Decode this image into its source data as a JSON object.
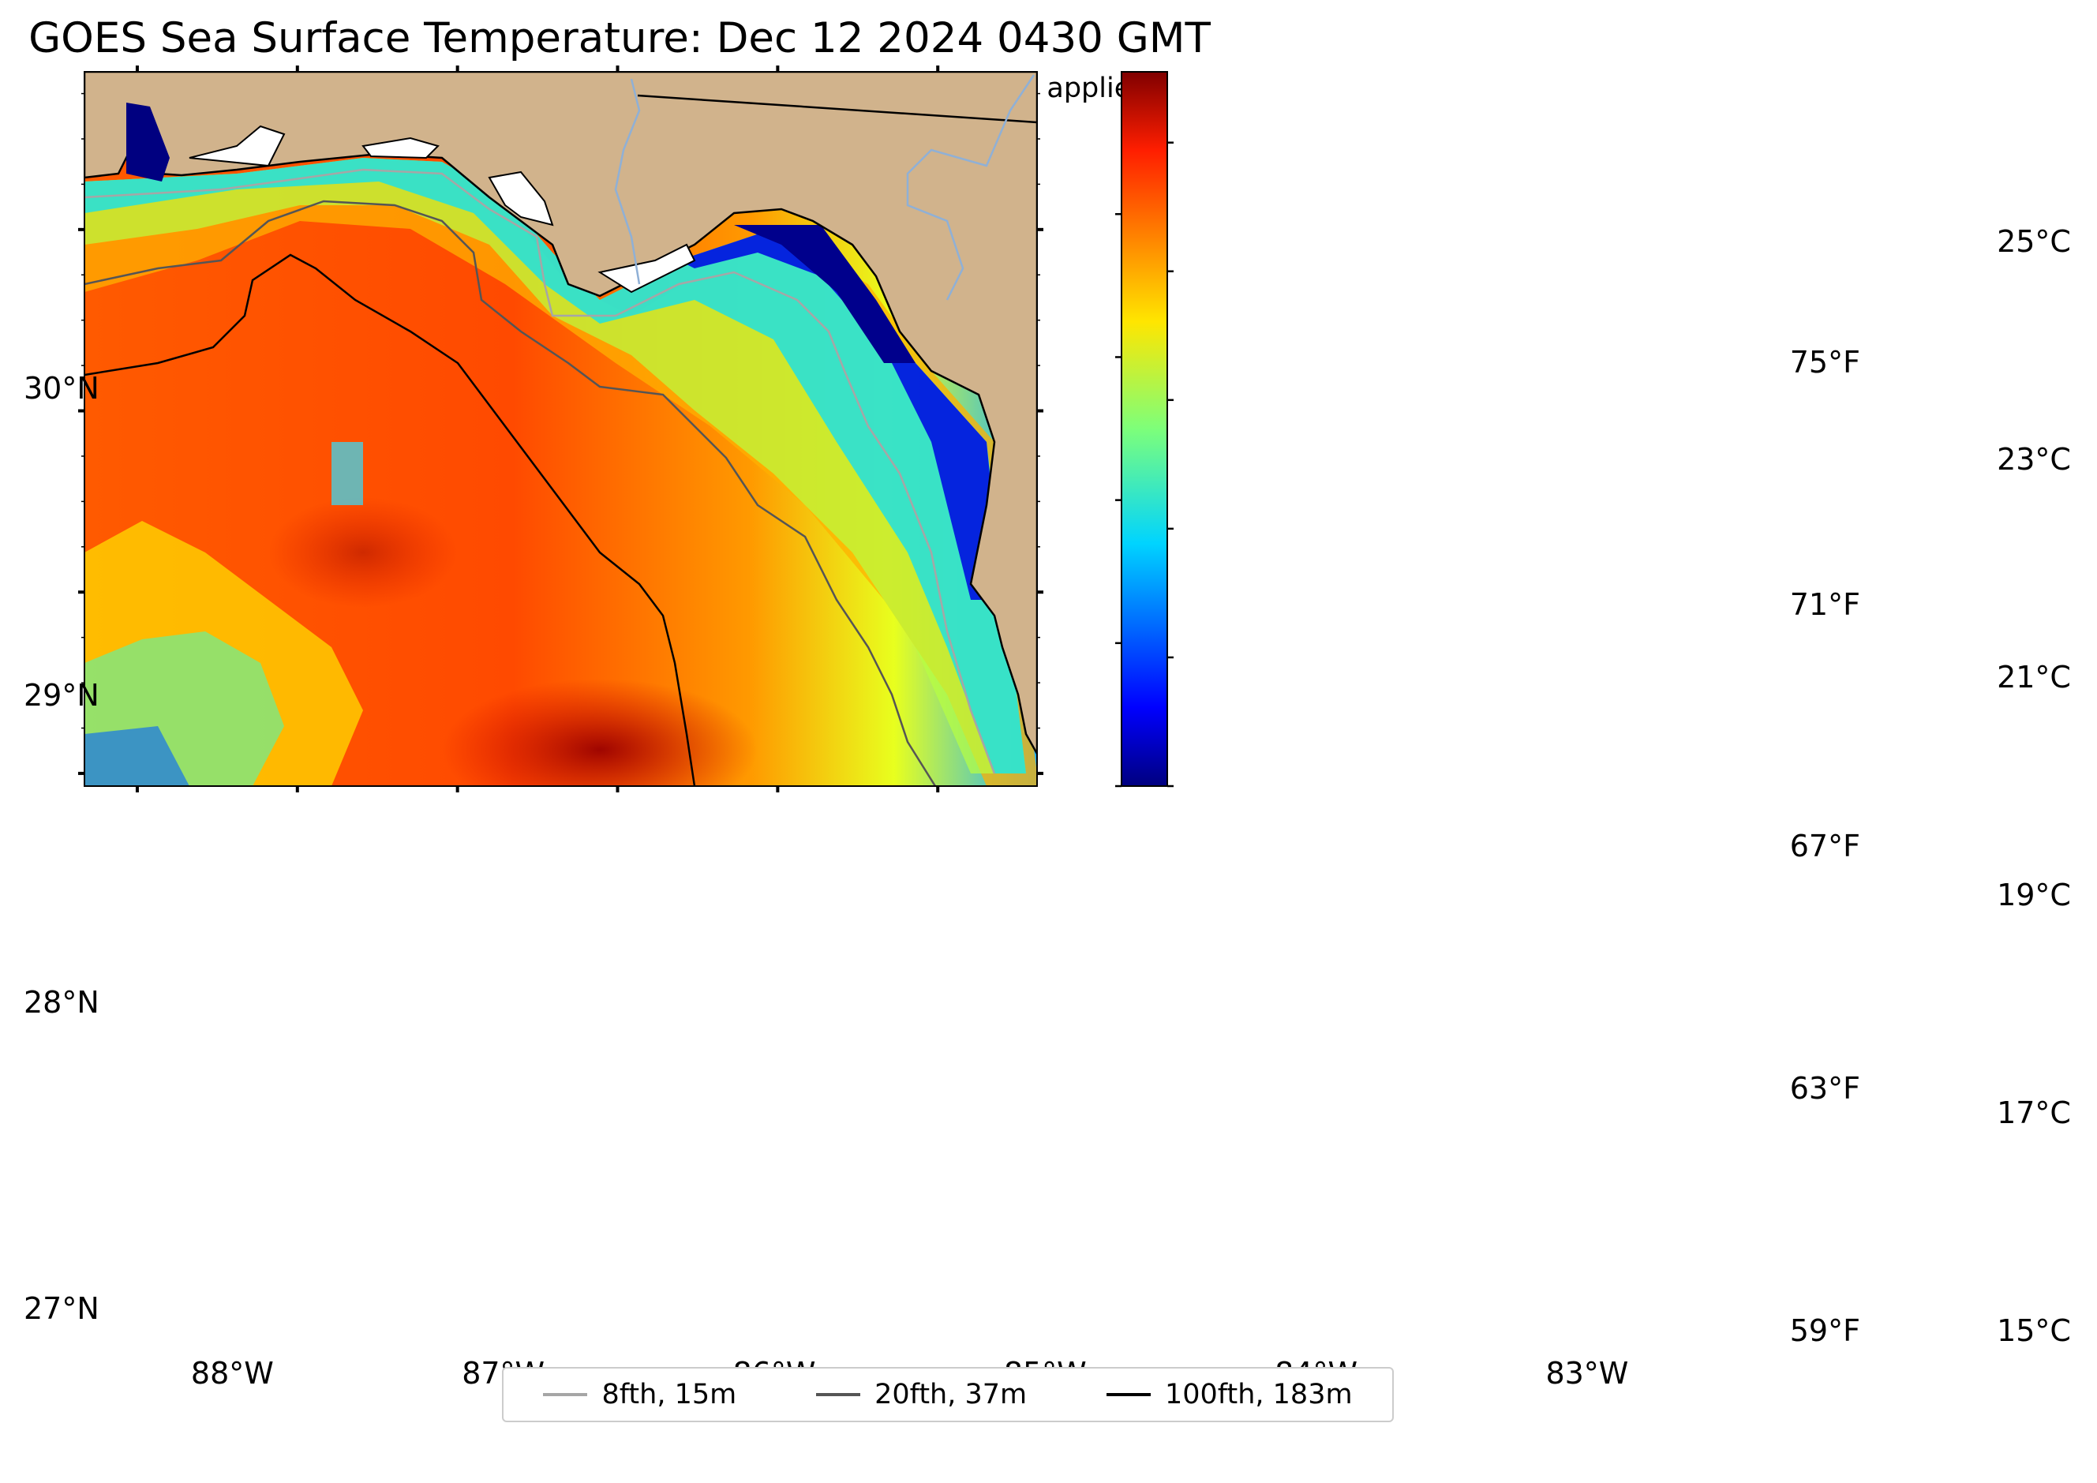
{
  "title": "GOES Sea Surface Temperature: Dec 12 2024 0430 GMT",
  "subtitle": "Courtesy of RUCOOL and U. Delaware ORB Labs, no cloud correction applied",
  "map": {
    "lon_range": [
      -88.33,
      -82.38
    ],
    "lat_range": [
      26.93,
      30.87
    ],
    "lon_ticks": [
      {
        "value": -88,
        "label": "88°W"
      },
      {
        "value": -87,
        "label": "87°W"
      },
      {
        "value": -86,
        "label": "86°W"
      },
      {
        "value": -85,
        "label": "85°W"
      },
      {
        "value": -84,
        "label": "84°W"
      },
      {
        "value": -83,
        "label": "83°W"
      }
    ],
    "lat_ticks": [
      {
        "value": 30,
        "label": "30°N"
      },
      {
        "value": 29,
        "label": "29°N"
      },
      {
        "value": 28,
        "label": "28°N"
      },
      {
        "value": 27,
        "label": "27°N"
      }
    ],
    "land_color": "#d1b38c",
    "contours": [
      {
        "label": "8fth, 15m",
        "color": "#a6a6a6"
      },
      {
        "label": "20fth, 37m",
        "color": "#555555"
      },
      {
        "label": "100fth, 183m",
        "color": "#000000"
      }
    ]
  },
  "colorbar": {
    "min_c": 15,
    "max_c": 26.1,
    "colormap": "jet",
    "c_ticks": [
      {
        "value": 25,
        "label": "25°C"
      },
      {
        "value": 23,
        "label": "23°C"
      },
      {
        "value": 21,
        "label": "21°C"
      },
      {
        "value": 19,
        "label": "19°C"
      },
      {
        "value": 17,
        "label": "17°C"
      },
      {
        "value": 15,
        "label": "15°C"
      }
    ],
    "f_ticks": [
      {
        "value": 75,
        "label": "75°F"
      },
      {
        "value": 71,
        "label": "71°F"
      },
      {
        "value": 67,
        "label": "67°F"
      },
      {
        "value": 63,
        "label": "63°F"
      },
      {
        "value": 59,
        "label": "59°F"
      }
    ]
  }
}
